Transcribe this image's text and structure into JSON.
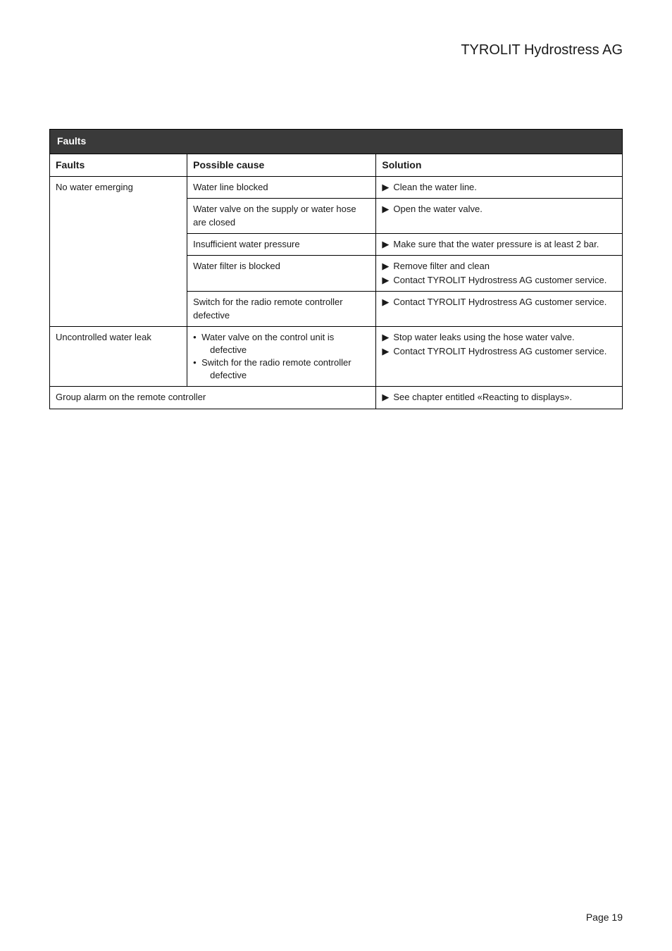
{
  "brand": "TYROLIT Hydrostress AG",
  "table": {
    "title": "Faults",
    "headers": {
      "faults": "Faults",
      "cause": "Possible cause",
      "solution": "Solution"
    },
    "rows": [
      {
        "fault": "No water emerging",
        "subrows": [
          {
            "cause": "Water line blocked",
            "solutions": [
              "Clean the water line."
            ]
          },
          {
            "cause_lines": [
              "Water valve on the supply or water hose",
              "are closed"
            ],
            "solutions": [
              "Open the water valve."
            ]
          },
          {
            "cause": "Insufficient water pressure",
            "solutions": [
              "Make sure that the water pressure is at least 2 bar."
            ]
          },
          {
            "cause": "Water filter is blocked",
            "solutions": [
              "Remove filter and clean",
              "Contact TYROLIT Hydrostress AG customer service."
            ]
          },
          {
            "cause_lines": [
              "Switch for the radio remote controller",
              "defective"
            ],
            "solutions": [
              "Contact TYROLIT Hydrostress AG customer service."
            ]
          }
        ]
      },
      {
        "fault": "Uncontrolled water leak",
        "cause_bullets": [
          "Water valve on the control unit is",
          "defective",
          "Switch for the radio remote controller",
          "defective"
        ],
        "solutions": [
          "Stop water leaks using the hose water valve.",
          "Contact TYROLIT Hydrostress AG customer service."
        ]
      }
    ],
    "lastrow": {
      "label": "Group alarm on the remote controller",
      "solution": "See chapter entitled «Reacting to displays»."
    }
  },
  "footer": "Page 19",
  "style": {
    "colors": {
      "table_title_bg": "#3a3a3a",
      "table_title_fg": "#ffffff",
      "border": "#000000",
      "text": "#1a1a1a",
      "background": "#ffffff"
    },
    "fonts": {
      "brand_size_pt": 15,
      "table_body_size_pt": 10,
      "table_header_size_pt": 10.5,
      "footer_size_pt": 10.5
    },
    "arrow_glyph": "▶",
    "bullet_glyph": "•"
  }
}
